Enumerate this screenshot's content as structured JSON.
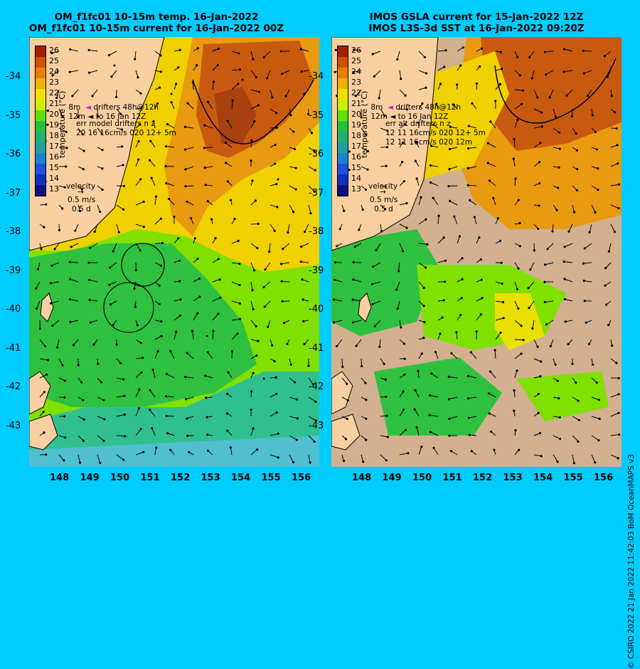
{
  "left": {
    "title_line1": "OM_f1fc01 10-15m temp. 16-Jan-2022",
    "title_line2": "OM_f1fc01 10-15m current for 16-Jan-2022 00Z",
    "legend_drifters_a": "8m",
    "legend_drifters_b": "12m",
    "legend_drifters_text1": "drifters 48h@12h",
    "legend_drifters_text2": "to 16 Jan 12Z",
    "legend_err1": "err model drifters n z",
    "legend_err2": "20 16 16cm/s 020 12+ 5m",
    "velocity_title": "velocity",
    "velocity_speed": "0.5 m/s",
    "velocity_days": "0.5 d"
  },
  "right": {
    "title_line1": "IMOS GSLA current for 15-Jan-2022 12Z",
    "title_line2": "IMOS L3S-3d SST at 16-Jan-2022 09:20Z",
    "legend_drifters_a": "8m",
    "legend_drifters_b": "12m",
    "legend_drifters_text1": "drifters 48h@12h",
    "legend_drifters_text2": "to 16 Jan 12Z",
    "legend_err1": "err alt drifters n z",
    "legend_err2": "12 11 16cm/s 020 12+ 5m",
    "legend_err3": "12 11 16cm/s 020 12m",
    "velocity_title": "velocity",
    "velocity_speed": "0.5 m/s",
    "velocity_days": "0.5 d"
  },
  "colorbar": {
    "title": "temperature (°C)",
    "ticks": [
      "26",
      "25",
      "24",
      "23",
      "22",
      "21",
      "20",
      "19",
      "18",
      "17",
      "16",
      "15",
      "14",
      "13"
    ],
    "colors": [
      "#a02000",
      "#d05000",
      "#e88000",
      "#f0b000",
      "#f0e000",
      "#c8f000",
      "#60e000",
      "#20c040",
      "#20b070",
      "#20a0a0",
      "#2080d0",
      "#2050e0",
      "#1030c0",
      "#101080"
    ]
  },
  "axes": {
    "lat_ticks": [
      "-34",
      "-35",
      "-36",
      "-37",
      "-38",
      "-39",
      "-40",
      "-41",
      "-42",
      "-43"
    ],
    "lon_ticks": [
      "148",
      "149",
      "150",
      "151",
      "152",
      "153",
      "154",
      "155",
      "156"
    ]
  },
  "credit": "© CSIRO 2022   21 Jan 2022 11:42:03 BoM OceanMAPS v3"
}
